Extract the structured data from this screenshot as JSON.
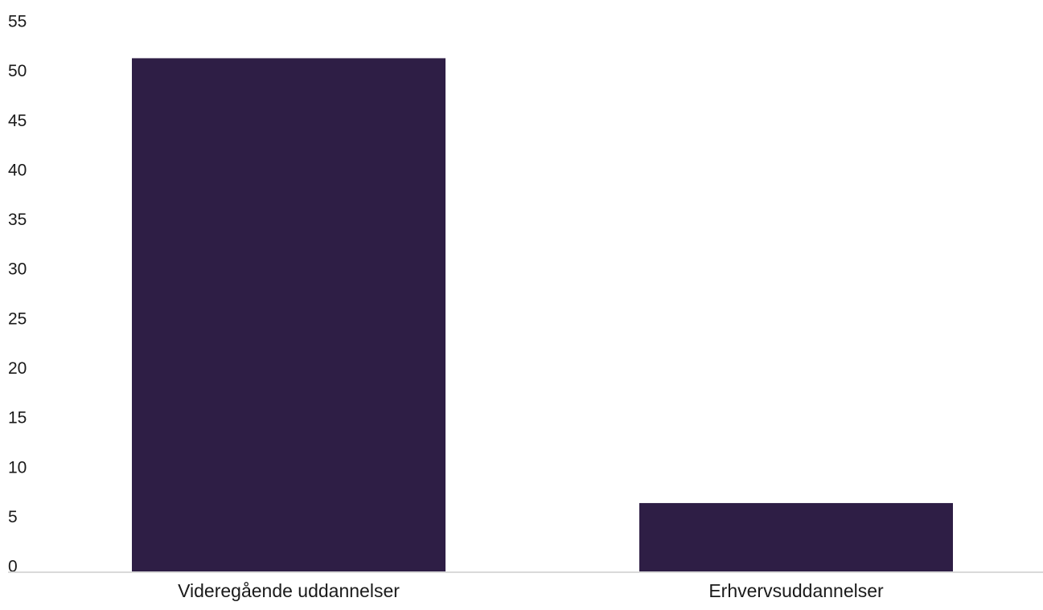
{
  "chart_data": {
    "type": "bar",
    "categories": [
      "Videregående uddannelser",
      "Erhvervsuddannelser"
    ],
    "values": [
      51.8,
      6.9
    ],
    "title": "",
    "xlabel": "",
    "ylabel": "",
    "ylim": [
      0,
      55
    ],
    "yticks": [
      0,
      5,
      10,
      15,
      20,
      25,
      30,
      35,
      40,
      45,
      50,
      55
    ],
    "grid": false,
    "legend": "none",
    "colors": {
      "bar": "#2e1e45",
      "axis_line": "#d9d9d9",
      "tick_text": "#1a1a1a",
      "background": "#ffffff"
    }
  }
}
